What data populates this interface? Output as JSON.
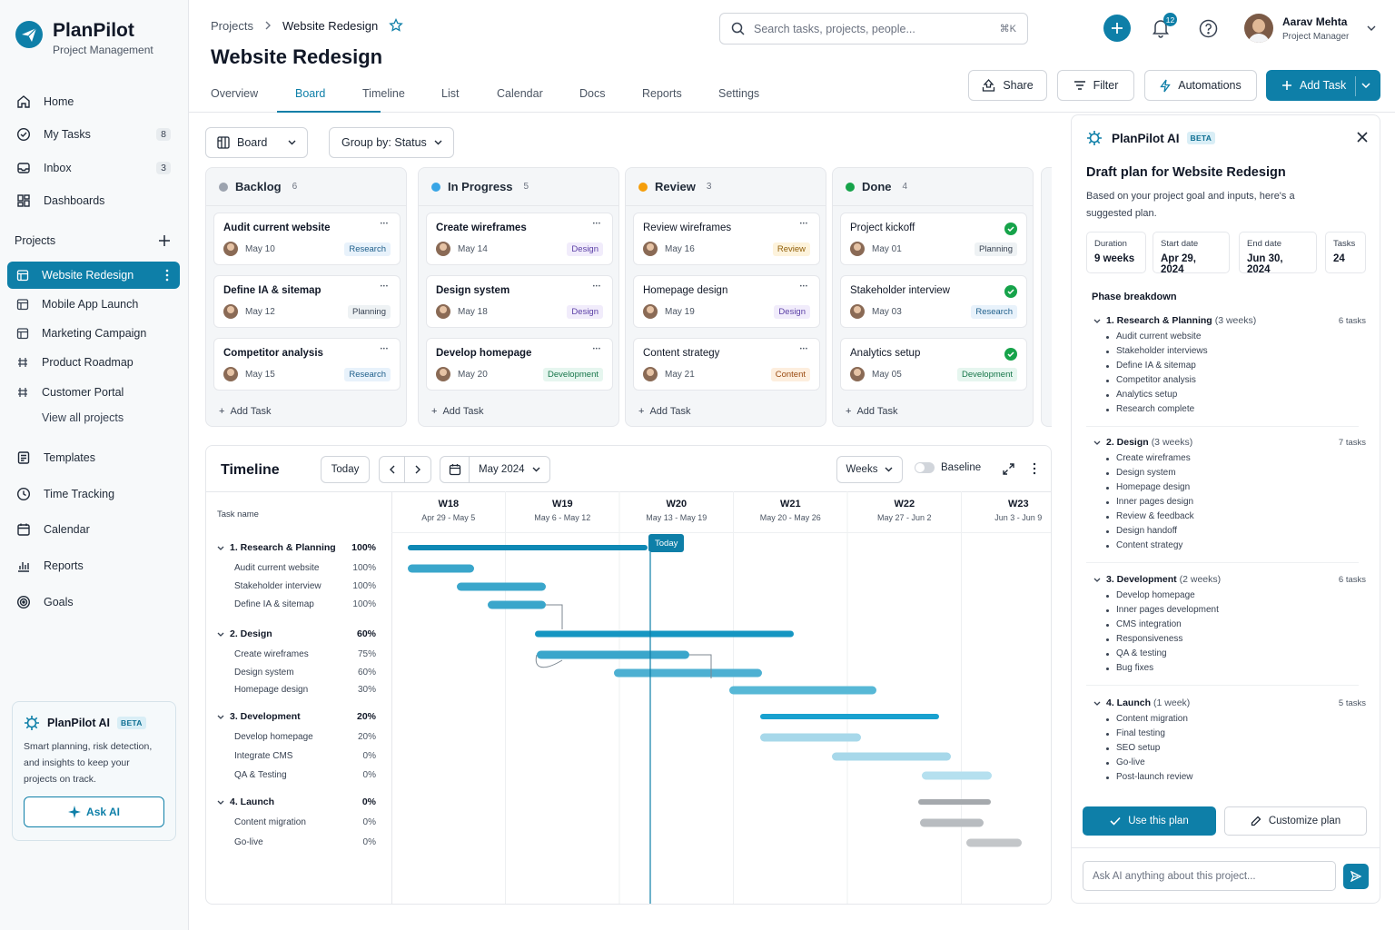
{
  "brand": {
    "name": "PlanPilot",
    "tagline": "Project Management"
  },
  "nav": [
    {
      "label": "Home",
      "icon": "home-icon"
    },
    {
      "label": "My Tasks",
      "icon": "check-circle-icon",
      "badge": "8"
    },
    {
      "label": "Inbox",
      "icon": "inbox-icon",
      "badge": "3"
    },
    {
      "label": "Dashboards",
      "icon": "dashboard-icon"
    }
  ],
  "projects": {
    "heading": "Projects",
    "items": [
      "Website Redesign",
      "Mobile App Launch",
      "Marketing Campaign",
      "Product Roadmap",
      "Customer Portal"
    ],
    "view_all": "View all projects"
  },
  "nav2": [
    {
      "label": "Templates",
      "icon": "template-icon"
    },
    {
      "label": "Time Tracking",
      "icon": "clock-icon"
    },
    {
      "label": "Calendar",
      "icon": "calendar-icon"
    },
    {
      "label": "Reports",
      "icon": "chart-icon"
    },
    {
      "label": "Goals",
      "icon": "target-icon"
    }
  ],
  "ai_promo": {
    "title": "PlanPilot AI",
    "badge": "BETA",
    "text": "Smart planning, risk detection, and insights to keep your projects on track.",
    "button": "Ask AI"
  },
  "breadcrumb": [
    "Projects",
    "Website Redesign"
  ],
  "page_title": "Website Redesign",
  "tabs": [
    "Overview",
    "Board",
    "Timeline",
    "List",
    "Calendar",
    "Docs",
    "Reports",
    "Settings"
  ],
  "search": {
    "placeholder": "Search tasks, projects, people...",
    "shortcut": "⌘K"
  },
  "notifications": "12",
  "user": {
    "name": "Aarav Mehta",
    "role": "Project Manager"
  },
  "actions": {
    "share": "Share",
    "filter": "Filter",
    "automations": "Automations",
    "add_task": "Add Task"
  },
  "board_controls": {
    "view": "Board",
    "group": "Group by: Status"
  },
  "columns": [
    {
      "name": "Backlog",
      "count": "6",
      "color": "#9ca3af",
      "cards": [
        {
          "title": "Audit current website",
          "date": "May 10",
          "tag": "Research"
        },
        {
          "title": "Define IA & sitemap",
          "date": "May 12",
          "tag": "Planning"
        },
        {
          "title": "Competitor analysis",
          "date": "May 15",
          "tag": "Research"
        }
      ]
    },
    {
      "name": "In Progress",
      "count": "5",
      "color": "#38a5e6",
      "cards": [
        {
          "title": "Create wireframes",
          "date": "May 14",
          "tag": "Design"
        },
        {
          "title": "Design system",
          "date": "May 18",
          "tag": "Design"
        },
        {
          "title": "Develop homepage",
          "date": "May 20",
          "tag": "Development"
        }
      ]
    },
    {
      "name": "Review",
      "count": "3",
      "color": "#f59e0b",
      "cards": [
        {
          "title": "Review wireframes",
          "date": "May 16",
          "tag": "Review"
        },
        {
          "title": "Homepage design",
          "date": "May 19",
          "tag": "Design"
        },
        {
          "title": "Content strategy",
          "date": "May 21",
          "tag": "Content"
        }
      ]
    },
    {
      "name": "Done",
      "count": "4",
      "color": "#16a34a",
      "cards": [
        {
          "title": "Project kickoff",
          "date": "May 01",
          "tag": "Planning"
        },
        {
          "title": "Stakeholder interview",
          "date": "May 03",
          "tag": "Research"
        },
        {
          "title": "Analytics setup",
          "date": "May 05",
          "tag": "Development"
        }
      ]
    }
  ],
  "tag_colors": {
    "Research": {
      "bg": "#e8f2fb",
      "fg": "#1f5f8b"
    },
    "Planning": {
      "bg": "#eef2f4",
      "fg": "#374151"
    },
    "Design": {
      "bg": "#f1ecfb",
      "fg": "#5b3fa6"
    },
    "Development": {
      "bg": "#e6f6ef",
      "fg": "#17764a"
    },
    "Review": {
      "bg": "#fdf3dc",
      "fg": "#92600a"
    },
    "Content": {
      "bg": "#fdeede",
      "fg": "#9a4b12"
    }
  },
  "add_task": "Add Task",
  "timeline": {
    "title": "Timeline",
    "today_btn": "Today",
    "month": "May 2024",
    "scale": "Weeks",
    "baseline": "Baseline",
    "task_header": "Task name",
    "today_marker": "Today",
    "weeks": [
      {
        "w": "W18",
        "r": "Apr 29 - May 5"
      },
      {
        "w": "W19",
        "r": "May 6 - May 12"
      },
      {
        "w": "W20",
        "r": "May 13 - May 19"
      },
      {
        "w": "W21",
        "r": "May 20 - May 26"
      },
      {
        "w": "W22",
        "r": "May 27 - Jun 2"
      },
      {
        "w": "W23",
        "r": "Jun 3 - Jun 9"
      }
    ],
    "rows": [
      {
        "name": "1. Research & Planning",
        "pct": "100%",
        "phase": true
      },
      {
        "name": "Audit current website",
        "pct": "100%"
      },
      {
        "name": "Stakeholder interview",
        "pct": "100%"
      },
      {
        "name": "Define IA & sitemap",
        "pct": "100%"
      },
      {
        "name": "2. Design",
        "pct": "60%",
        "phase": true
      },
      {
        "name": "Create wireframes",
        "pct": "75%"
      },
      {
        "name": "Design system",
        "pct": "60%"
      },
      {
        "name": "Homepage design",
        "pct": "30%"
      },
      {
        "name": "3. Development",
        "pct": "20%",
        "phase": true
      },
      {
        "name": "Develop homepage",
        "pct": "20%"
      },
      {
        "name": "Integrate CMS",
        "pct": "0%"
      },
      {
        "name": "QA & Testing",
        "pct": "0%"
      },
      {
        "name": "4. Launch",
        "pct": "0%",
        "phase": true
      },
      {
        "name": "Content migration",
        "pct": "0%"
      },
      {
        "name": "Go-live",
        "pct": "0%"
      }
    ]
  },
  "ai_panel": {
    "title": "PlanPilot AI",
    "badge": "BETA",
    "heading": "Draft plan for Website Redesign",
    "intro": "Based on your project goal and inputs, here's a suggested plan.",
    "stats": [
      {
        "label": "Duration",
        "value": "9 weeks"
      },
      {
        "label": "Start date",
        "value": "Apr 29, 2024"
      },
      {
        "label": "End date",
        "value": "Jun 30, 2024"
      },
      {
        "label": "Tasks",
        "value": "24"
      }
    ],
    "phase_heading": "Phase breakdown",
    "phases": [
      {
        "name": "1. Research & Planning",
        "dur": "(3 weeks)",
        "tasks": "6 tasks",
        "items": [
          "Audit current website",
          "Stakeholder interviews",
          "Define IA & sitemap",
          "Competitor analysis",
          "Analytics setup",
          "Research complete"
        ]
      },
      {
        "name": "2. Design",
        "dur": "(3 weeks)",
        "tasks": "7 tasks",
        "items": [
          "Create wireframes",
          "Design system",
          "Homepage design",
          "Inner pages design",
          "Review & feedback",
          "Design handoff",
          "Content strategy"
        ]
      },
      {
        "name": "3. Development",
        "dur": "(2 weeks)",
        "tasks": "6 tasks",
        "items": [
          "Develop homepage",
          "Inner pages development",
          "CMS integration",
          "Responsiveness",
          "QA & testing",
          "Bug fixes"
        ]
      },
      {
        "name": "4. Launch",
        "dur": "(1 week)",
        "tasks": "5 tasks",
        "items": [
          "Content migration",
          "Final testing",
          "SEO setup",
          "Go-live",
          "Post-launch review"
        ]
      }
    ],
    "use_plan": "Use this plan",
    "customize": "Customize plan",
    "ask_placeholder": "Ask AI anything about this project..."
  }
}
